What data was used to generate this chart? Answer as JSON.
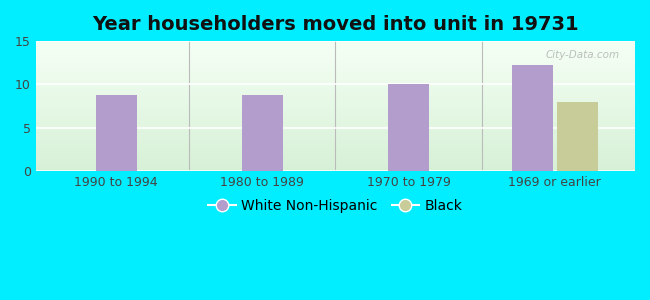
{
  "title": "Year householders moved into unit in 19731",
  "categories": [
    "1990 to 1994",
    "1980 to 1989",
    "1970 to 1979",
    "1969 or earlier"
  ],
  "white_values": [
    8.8,
    8.8,
    10.0,
    12.2
  ],
  "black_values": [
    null,
    null,
    null,
    8.0
  ],
  "white_color": "#b39dcc",
  "black_color": "#c8cc99",
  "ylim": [
    0,
    15
  ],
  "yticks": [
    0,
    5,
    10,
    15
  ],
  "fig_bg_color": "#00eeff",
  "plot_bg_top": "#d6f0d6",
  "plot_bg_bottom": "#f5fff5",
  "watermark": "City-Data.com",
  "legend_white": "White Non-Hispanic",
  "legend_black": "Black",
  "bar_width": 0.28,
  "title_fontsize": 14,
  "tick_fontsize": 9,
  "legend_fontsize": 10
}
